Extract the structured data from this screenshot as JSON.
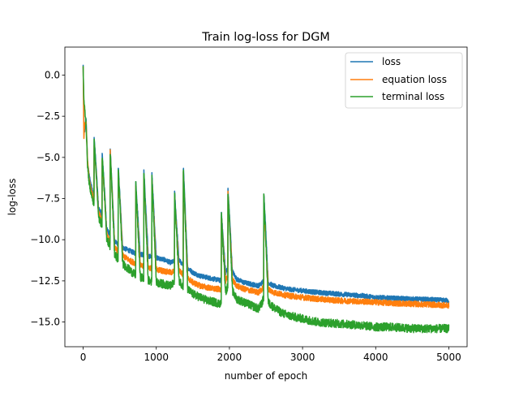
{
  "chart_data": {
    "type": "line",
    "title": "Train log-loss for DGM",
    "xlabel": "number of epoch",
    "ylabel": "log-loss",
    "xlim": [
      -250,
      5250
    ],
    "ylim": [
      -16.5,
      1.7
    ],
    "xticks": [
      0,
      1000,
      2000,
      3000,
      4000,
      5000
    ],
    "xtick_labels": [
      "0",
      "1000",
      "2000",
      "3000",
      "4000",
      "5000"
    ],
    "yticks": [
      0.0,
      -2.5,
      -5.0,
      -7.5,
      -10.0,
      -12.5,
      -15.0
    ],
    "ytick_labels": [
      "0.0",
      "−2.5",
      "−5.0",
      "−7.5",
      "−10.0",
      "−12.5",
      "−15.0"
    ],
    "grid": false,
    "legend_position": "top-right",
    "x": [
      0,
      10,
      20,
      40,
      60,
      80,
      100,
      130,
      160,
      200,
      260,
      300,
      340,
      400,
      480,
      550,
      650,
      700,
      800,
      900,
      1000,
      1100,
      1200,
      1250,
      1300,
      1380,
      1450,
      1500,
      1600,
      1700,
      1800,
      1900,
      1950,
      2000,
      2050,
      2100,
      2200,
      2300,
      2400,
      2450,
      2490,
      2530,
      2600,
      2700,
      2800,
      3000,
      3200,
      3500,
      3800,
      4000,
      4200,
      4500,
      4800,
      5000
    ],
    "series": [
      {
        "name": "loss",
        "color": "#1f77b4",
        "values": [
          0.6,
          -2.8,
          -3.5,
          -2.6,
          -5.3,
          -6.0,
          -6.5,
          -7.0,
          -7.5,
          -8.0,
          -8.5,
          -9.0,
          -9.5,
          -10.0,
          -10.3,
          -10.5,
          -10.7,
          -10.8,
          -10.9,
          -11.0,
          -11.1,
          -11.2,
          -11.4,
          -11.3,
          -11.2,
          -11.6,
          -11.8,
          -12.0,
          -12.2,
          -12.3,
          -12.4,
          -12.5,
          -12.0,
          -11.5,
          -12.0,
          -12.4,
          -12.6,
          -12.7,
          -12.8,
          -12.6,
          -12.3,
          -12.6,
          -12.8,
          -12.9,
          -13.0,
          -13.1,
          -13.2,
          -13.3,
          -13.4,
          -13.5,
          -13.55,
          -13.6,
          -13.65,
          -13.7
        ]
      },
      {
        "name": "equation loss",
        "color": "#ff7f0e",
        "values": [
          0.5,
          -3.9,
          -3.0,
          -2.9,
          -5.2,
          -6.2,
          -6.8,
          -7.3,
          -7.8,
          -8.3,
          -8.8,
          -9.3,
          -9.8,
          -10.4,
          -10.7,
          -11.0,
          -11.3,
          -11.4,
          -11.6,
          -11.7,
          -11.8,
          -11.9,
          -12.0,
          -11.9,
          -11.8,
          -12.2,
          -12.4,
          -12.6,
          -12.8,
          -12.9,
          -13.0,
          -13.0,
          -12.5,
          -12.0,
          -12.5,
          -12.8,
          -13.0,
          -13.1,
          -13.2,
          -13.0,
          -12.6,
          -13.0,
          -13.2,
          -13.3,
          -13.4,
          -13.5,
          -13.6,
          -13.7,
          -13.75,
          -13.8,
          -13.85,
          -13.9,
          -13.95,
          -14.0
        ]
      },
      {
        "name": "terminal loss",
        "color": "#2ca02c",
        "values": [
          0.4,
          -1.5,
          -2.0,
          -3.0,
          -5.5,
          -6.5,
          -7.0,
          -7.6,
          -8.1,
          -8.6,
          -9.1,
          -9.6,
          -10.1,
          -10.7,
          -11.2,
          -11.5,
          -11.9,
          -12.1,
          -12.3,
          -12.5,
          -12.6,
          -12.7,
          -12.8,
          -12.6,
          -12.4,
          -12.9,
          -13.1,
          -13.3,
          -13.5,
          -13.7,
          -13.8,
          -13.9,
          -13.2,
          -12.5,
          -13.2,
          -13.6,
          -13.8,
          -14.0,
          -14.2,
          -13.8,
          -13.2,
          -13.8,
          -14.1,
          -14.4,
          -14.6,
          -14.8,
          -15.0,
          -15.1,
          -15.2,
          -15.3,
          -15.3,
          -15.4,
          -15.4,
          -15.4
        ]
      }
    ],
    "spikes": [
      {
        "x": 150,
        "peaks": [
          -3.8,
          -4.2,
          -3.9
        ]
      },
      {
        "x": 260,
        "peaks": [
          -4.8,
          -5.2,
          -4.9
        ]
      },
      {
        "x": 370,
        "peaks": [
          -4.5,
          -4.7,
          -4.6
        ]
      },
      {
        "x": 480,
        "peaks": [
          -5.6,
          -5.9,
          -5.7
        ]
      },
      {
        "x": 720,
        "peaks": [
          -6.5,
          -6.8,
          -6.6
        ]
      },
      {
        "x": 830,
        "peaks": [
          -5.8,
          -6.2,
          -5.9
        ]
      },
      {
        "x": 940,
        "peaks": [
          -6.0,
          -6.3,
          -6.1
        ]
      },
      {
        "x": 1250,
        "peaks": [
          -7.1,
          -7.4,
          -7.2
        ]
      },
      {
        "x": 1370,
        "peaks": [
          -5.6,
          -5.9,
          -5.7
        ]
      },
      {
        "x": 1890,
        "peaks": [
          -8.3,
          -8.6,
          -8.4
        ]
      },
      {
        "x": 1980,
        "peaks": [
          -6.9,
          -7.2,
          -7.0
        ]
      },
      {
        "x": 2470,
        "peaks": [
          -7.1,
          -8.0,
          -7.2
        ]
      }
    ]
  }
}
